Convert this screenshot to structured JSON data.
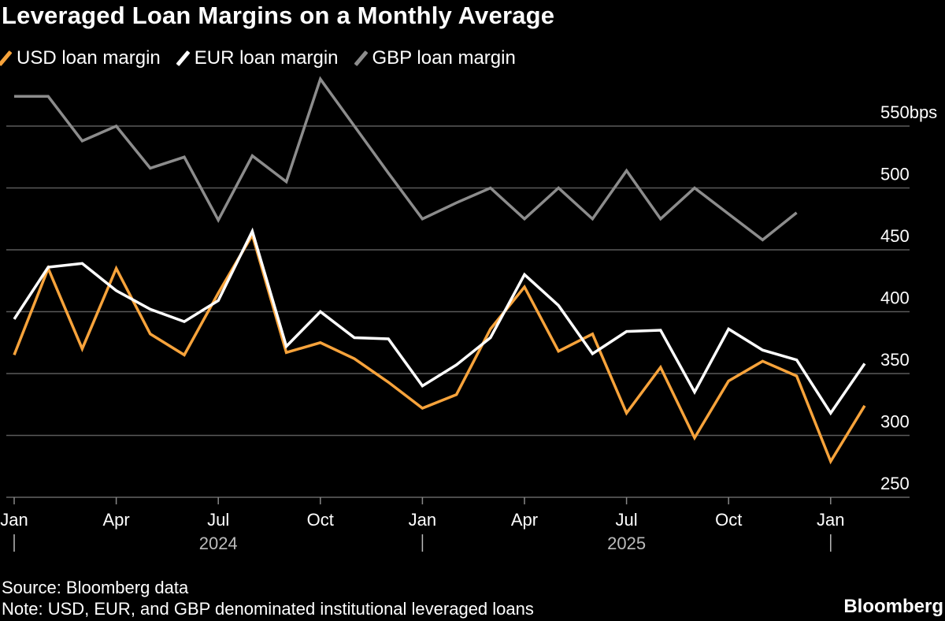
{
  "chart_data": {
    "type": "line",
    "title": "Leveraged Loan Margins on a Monthly Average",
    "x": [
      "2024-01",
      "2024-02",
      "2024-03",
      "2024-04",
      "2024-05",
      "2024-06",
      "2024-07",
      "2024-08",
      "2024-09",
      "2024-10",
      "2024-11",
      "2024-12",
      "2025-01",
      "2025-02",
      "2025-03",
      "2025-04",
      "2025-05",
      "2025-06",
      "2025-07",
      "2025-08",
      "2025-09",
      "2025-10",
      "2025-11",
      "2025-12",
      "2026-01",
      "2026-02"
    ],
    "series": [
      {
        "name": "USD loan margin",
        "color": "#f7a33b",
        "values": [
          365,
          435,
          370,
          435,
          382,
          365,
          415,
          462,
          367,
          375,
          362,
          343,
          322,
          333,
          386,
          420,
          368,
          382,
          318,
          355,
          298,
          344,
          360,
          348,
          279,
          324
        ]
      },
      {
        "name": "EUR loan margin",
        "color": "#ffffff",
        "values": [
          394,
          436,
          439,
          417,
          402,
          392,
          409,
          465,
          372,
          400,
          379,
          378,
          340,
          357,
          379,
          430,
          405,
          366,
          384,
          385,
          335,
          386,
          369,
          361,
          318,
          358
        ]
      },
      {
        "name": "GBP loan margin",
        "color": "#8c8c8c",
        "values": [
          574,
          574,
          538,
          550,
          516,
          525,
          474,
          526,
          505,
          588,
          550,
          512,
          475,
          488,
          500,
          475,
          500,
          475,
          514,
          475,
          500,
          479,
          458,
          480,
          null,
          null
        ]
      }
    ],
    "y_ticks": [
      250,
      300,
      350,
      400,
      450,
      500,
      550
    ],
    "y_tick_labels": [
      "250",
      "300",
      "350",
      "400",
      "450",
      "500",
      "550bps"
    ],
    "ylim": [
      250,
      580
    ],
    "x_tick_labels": [
      {
        "label": "Jan",
        "index": 0
      },
      {
        "label": "Apr",
        "index": 3
      },
      {
        "label": "Jul",
        "index": 6
      },
      {
        "label": "Oct",
        "index": 9
      },
      {
        "label": "Jan",
        "index": 12
      },
      {
        "label": "Apr",
        "index": 15
      },
      {
        "label": "Jul",
        "index": 18
      },
      {
        "label": "Oct",
        "index": 21
      },
      {
        "label": "Jan",
        "index": 24
      }
    ],
    "year_labels": [
      {
        "label": "2024",
        "index": 6
      },
      {
        "label": "2025",
        "index": 18
      }
    ],
    "year_separators": [
      0,
      12,
      24
    ],
    "xlabel": "",
    "ylabel": "",
    "grid": true,
    "legend_position": "top-left"
  },
  "footer": {
    "source": "Source: Bloomberg data",
    "note": "Note: USD, EUR, and GBP denominated institutional leveraged loans",
    "brand": "Bloomberg"
  }
}
